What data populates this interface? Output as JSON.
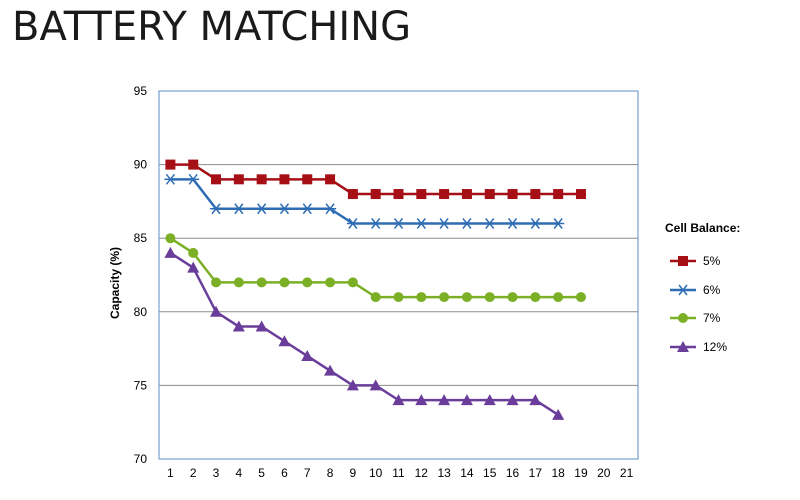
{
  "page": {
    "title": "BATTERY MATCHING"
  },
  "chart_data": {
    "type": "line",
    "title": "BATTERY MATCHING",
    "xlabel": "",
    "ylabel": "Capacity (%)",
    "xlim": [
      0.5,
      21.5
    ],
    "ylim": [
      70,
      95
    ],
    "x_ticks": [
      "1",
      "2",
      "3",
      "4",
      "5",
      "6",
      "7",
      "8",
      "9",
      "10",
      "11",
      "12",
      "13",
      "14",
      "15",
      "16",
      "17",
      "18",
      "19",
      "20",
      "21"
    ],
    "y_ticks": [
      "70",
      "75",
      "80",
      "85",
      "90",
      "95"
    ],
    "grid": "horizontal",
    "legend_title": "Cell Balance:",
    "legend_position": "right",
    "series": [
      {
        "name": "5%",
        "color": "#a50f15",
        "marker": "square",
        "x": [
          1,
          2,
          3,
          4,
          5,
          6,
          7,
          8,
          9,
          10,
          11,
          12,
          13,
          14,
          15,
          16,
          17,
          18,
          19
        ],
        "values": [
          90,
          90,
          89,
          89,
          89,
          89,
          89,
          89,
          88,
          88,
          88,
          88,
          88,
          88,
          88,
          88,
          88,
          88,
          88
        ]
      },
      {
        "name": "6%",
        "color": "#2e6db4",
        "marker": "asterisk",
        "x": [
          1,
          2,
          3,
          4,
          5,
          6,
          7,
          8,
          9,
          10,
          11,
          12,
          13,
          14,
          15,
          16,
          17,
          18
        ],
        "values": [
          89,
          89,
          87,
          87,
          87,
          87,
          87,
          87,
          86,
          86,
          86,
          86,
          86,
          86,
          86,
          86,
          86,
          86
        ]
      },
      {
        "name": "7%",
        "color": "#7bb026",
        "marker": "circle",
        "x": [
          1,
          2,
          3,
          4,
          5,
          6,
          7,
          8,
          9,
          10,
          11,
          12,
          13,
          14,
          15,
          16,
          17,
          18,
          19
        ],
        "values": [
          85,
          84,
          82,
          82,
          82,
          82,
          82,
          82,
          82,
          81,
          81,
          81,
          81,
          81,
          81,
          81,
          81,
          81,
          81
        ]
      },
      {
        "name": "12%",
        "color": "#6a3d9a",
        "marker": "triangle",
        "x": [
          1,
          2,
          3,
          4,
          5,
          6,
          7,
          8,
          9,
          10,
          11,
          12,
          13,
          14,
          15,
          16,
          17,
          18
        ],
        "values": [
          84,
          83,
          80,
          79,
          79,
          78,
          77,
          76,
          75,
          75,
          74,
          74,
          74,
          74,
          74,
          74,
          74,
          73
        ]
      }
    ]
  }
}
